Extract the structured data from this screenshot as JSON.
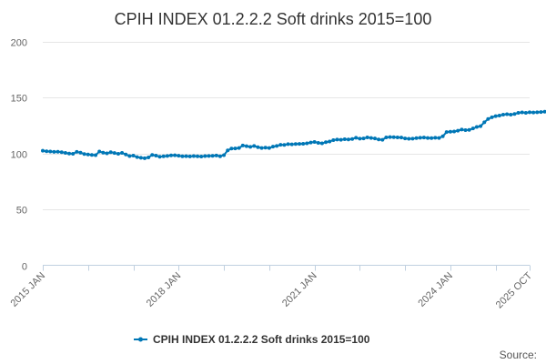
{
  "chart_data": {
    "type": "line",
    "title": "CPIH INDEX 01.2.2.2 Soft drinks 2015=100",
    "xlabel": "",
    "ylabel": "",
    "x_start": "2015 JAN",
    "x_end": "2025 OCT",
    "x_tick_labels": [
      "2015 JAN",
      "2018 JAN",
      "2021 JAN",
      "2024 JAN",
      "2025 OCT"
    ],
    "y_ticks": [
      0,
      50,
      100,
      150,
      200
    ],
    "ylim": [
      0,
      200
    ],
    "grid": true,
    "legend_position": "bottom-center",
    "series_color": "#0077b6",
    "series": [
      {
        "name": "CPIH INDEX 01.2.2.2 Soft drinks 2015=100",
        "values": [
          102.5,
          102.0,
          101.8,
          101.5,
          101.6,
          101.2,
          100.6,
          100.0,
          99.8,
          101.5,
          100.8,
          99.6,
          99.2,
          98.8,
          98.6,
          101.8,
          100.8,
          100.2,
          101.2,
          100.5,
          99.8,
          100.6,
          99.2,
          97.8,
          98.2,
          96.8,
          96.2,
          95.8,
          96.5,
          98.8,
          98.2,
          97.2,
          97.6,
          97.9,
          98.4,
          98.5,
          98.1,
          97.6,
          97.7,
          97.5,
          97.8,
          97.6,
          97.4,
          97.8,
          97.9,
          98.0,
          98.3,
          97.6,
          98.6,
          102.8,
          104.5,
          104.6,
          105.0,
          107.2,
          106.6,
          106.0,
          106.8,
          105.7,
          105.0,
          105.3,
          105.0,
          106.2,
          106.8,
          107.8,
          107.7,
          108.5,
          108.2,
          108.6,
          108.7,
          108.8,
          109.2,
          109.9,
          110.4,
          109.6,
          109.2,
          110.2,
          110.8,
          112.0,
          112.5,
          112.3,
          112.8,
          112.6,
          113.0,
          114.2,
          113.3,
          113.5,
          114.5,
          114.0,
          113.5,
          112.6,
          112.3,
          114.5,
          114.8,
          114.7,
          114.5,
          114.4,
          113.5,
          113.2,
          113.3,
          113.8,
          114.2,
          114.4,
          114.0,
          113.8,
          114.2,
          114.0,
          115.5,
          119.2,
          119.6,
          119.8,
          120.5,
          121.5,
          121.0,
          121.2,
          122.5,
          123.8,
          124.5,
          128.0,
          131.0,
          132.5,
          133.5,
          134.0,
          134.8,
          135.2,
          134.8,
          135.4,
          136.5,
          136.9,
          136.5,
          137.0,
          136.8,
          137.0,
          137.2,
          137.5,
          138.2,
          138.0,
          138.5,
          139.0,
          138.8,
          139.3,
          139.2,
          139.8,
          140.0,
          139.8,
          140.5,
          140.8,
          141.0,
          140.8,
          141.6,
          142.5,
          142.6,
          143.0,
          144.0,
          144.5,
          145.5,
          146.8,
          147.5,
          148.2,
          148.5,
          149.0,
          149.6,
          150.4
        ]
      }
    ]
  },
  "source_label": "Source:"
}
